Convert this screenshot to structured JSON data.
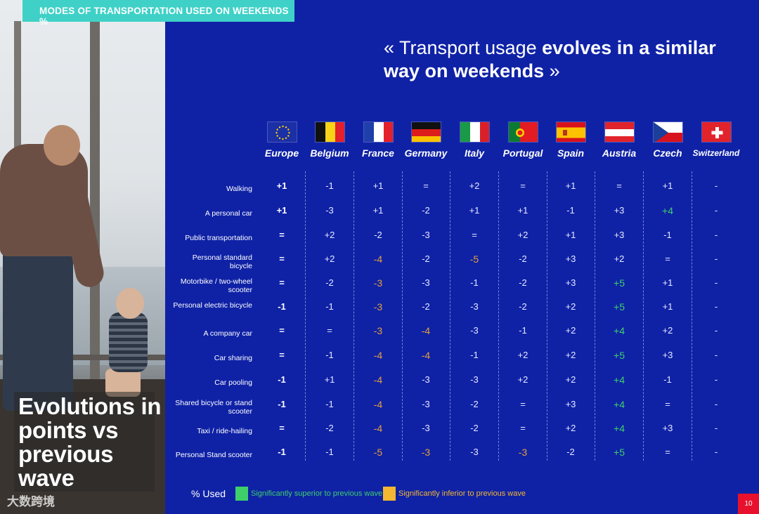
{
  "tag_title": "MODES OF TRANSPORTATION USED ON WEEKENDS %",
  "quote": {
    "normal": "« Transport usage ",
    "bold": "evolves in a similar way on weekends",
    "end": " »"
  },
  "headline": "Evolutions in points vs previous wave",
  "watermark": "大数跨境",
  "colors": {
    "background": "#0f22a6",
    "tag": "#3fd1c7",
    "superior": "#3ecf6b",
    "inferior": "#f5b731",
    "page_badge": "#e8112d"
  },
  "countries": [
    {
      "name": "Europe",
      "flag": "eu-flag-icon"
    },
    {
      "name": "Belgium",
      "flag": "belgium-flag-icon"
    },
    {
      "name": "France",
      "flag": "france-flag-icon"
    },
    {
      "name": "Germany",
      "flag": "germany-flag-icon"
    },
    {
      "name": "Italy",
      "flag": "italy-flag-icon"
    },
    {
      "name": "Portugal",
      "flag": "portugal-flag-icon"
    },
    {
      "name": "Spain",
      "flag": "spain-flag-icon"
    },
    {
      "name": "Austria",
      "flag": "austria-flag-icon"
    },
    {
      "name": "Czech",
      "flag": "czech-flag-icon"
    },
    {
      "name": "Switzerland",
      "flag": "switzerland-flag-icon"
    }
  ],
  "rows": [
    {
      "label": "Walking",
      "values": [
        "+1",
        "-1",
        "+1",
        "=",
        "+2",
        "=",
        "+1",
        "=",
        "+1",
        "-"
      ],
      "status": [
        "n",
        "n",
        "n",
        "n",
        "n",
        "n",
        "n",
        "n",
        "n",
        "n"
      ]
    },
    {
      "label": "A personal car",
      "values": [
        "+1",
        "-3",
        "+1",
        "-2",
        "+1",
        "+1",
        "-1",
        "+3",
        "+4",
        "-"
      ],
      "status": [
        "n",
        "n",
        "n",
        "n",
        "n",
        "n",
        "n",
        "n",
        "up",
        "n"
      ]
    },
    {
      "label": "Public transportation",
      "values": [
        "=",
        "+2",
        "-2",
        "-3",
        "=",
        "+2",
        "+1",
        "+3",
        "-1",
        "-"
      ],
      "status": [
        "n",
        "n",
        "n",
        "n",
        "n",
        "n",
        "n",
        "n",
        "n",
        "n"
      ]
    },
    {
      "label": "Personal standard bicycle",
      "values": [
        "=",
        "+2",
        "-4",
        "-2",
        "-5",
        "-2",
        "+3",
        "+2",
        "=",
        "-"
      ],
      "status": [
        "n",
        "n",
        "down",
        "n",
        "down",
        "n",
        "n",
        "n",
        "n",
        "n"
      ]
    },
    {
      "label": "Motorbike / two-wheel scooter",
      "values": [
        "=",
        "-2",
        "-3",
        "-3",
        "-1",
        "-2",
        "+3",
        "+5",
        "+1",
        "-"
      ],
      "status": [
        "n",
        "n",
        "down",
        "n",
        "n",
        "n",
        "n",
        "up",
        "n",
        "n"
      ]
    },
    {
      "label": "Personal electric bicycle",
      "values": [
        "-1",
        "-1",
        "-3",
        "-2",
        "-3",
        "-2",
        "+2",
        "+5",
        "+1",
        "-"
      ],
      "status": [
        "n",
        "n",
        "down",
        "n",
        "n",
        "n",
        "n",
        "up",
        "n",
        "n"
      ]
    },
    {
      "label": "A company car",
      "values": [
        "=",
        "=",
        "-3",
        "-4",
        "-3",
        "-1",
        "+2",
        "+4",
        "+2",
        "-"
      ],
      "status": [
        "n",
        "n",
        "down",
        "down",
        "n",
        "n",
        "n",
        "up",
        "n",
        "n"
      ]
    },
    {
      "label": "Car sharing",
      "values": [
        "=",
        "-1",
        "-4",
        "-4",
        "-1",
        "+2",
        "+2",
        "+5",
        "+3",
        "-"
      ],
      "status": [
        "n",
        "n",
        "down",
        "down",
        "n",
        "n",
        "n",
        "up",
        "n",
        "n"
      ]
    },
    {
      "label": "Car pooling",
      "values": [
        "-1",
        "+1",
        "-4",
        "-3",
        "-3",
        "+2",
        "+2",
        "+4",
        "-1",
        "-"
      ],
      "status": [
        "n",
        "n",
        "down",
        "n",
        "n",
        "n",
        "n",
        "up",
        "n",
        "n"
      ]
    },
    {
      "label": "Shared bicycle or stand scooter",
      "values": [
        "-1",
        "-1",
        "-4",
        "-3",
        "-2",
        "=",
        "+3",
        "+4",
        "=",
        "-"
      ],
      "status": [
        "n",
        "n",
        "down",
        "n",
        "n",
        "n",
        "n",
        "up",
        "n",
        "n"
      ]
    },
    {
      "label": "Taxi / ride-hailing",
      "values": [
        "=",
        "-2",
        "-4",
        "-3",
        "-2",
        "=",
        "+2",
        "+4",
        "+3",
        "-"
      ],
      "status": [
        "n",
        "n",
        "down",
        "n",
        "n",
        "n",
        "n",
        "up",
        "n",
        "n"
      ]
    },
    {
      "label": "Personal Stand scooter",
      "values": [
        "-1",
        "-1",
        "-5",
        "-3",
        "-3",
        "-3",
        "-2",
        "+5",
        "=",
        "-"
      ],
      "status": [
        "n",
        "n",
        "down",
        "down",
        "n",
        "down",
        "n",
        "up",
        "n",
        "n"
      ]
    }
  ],
  "legend": {
    "label": "% Used",
    "superior": "Significantly superior to previous wave",
    "inferior": "Significantly inferior to previous wave"
  },
  "page_number": "10"
}
